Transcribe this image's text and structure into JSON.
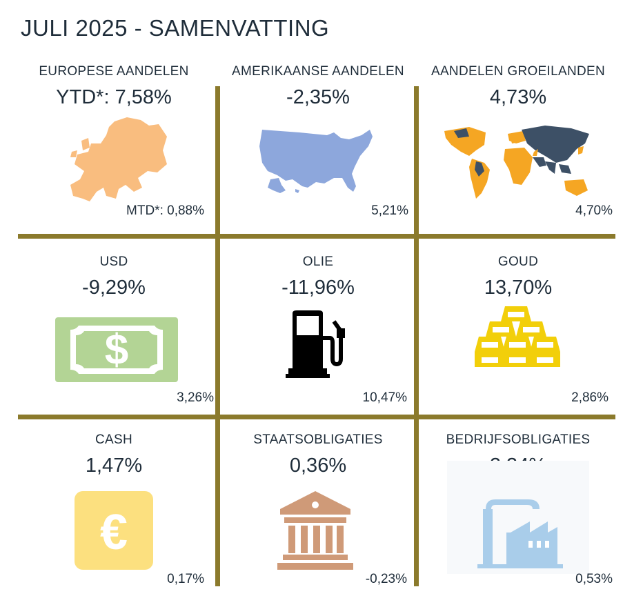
{
  "title": "JULI 2025 - SAMENVATTING",
  "cells": [
    {
      "label": "EUROPESE AANDELEN",
      "ytd": "YTD*: 7,58%",
      "mtd": "MTD*: 0,88%",
      "icon": "europe-map-icon",
      "color": "#f9bd7f"
    },
    {
      "label": "AMERIKAANSE AANDELEN",
      "ytd": "-2,35%",
      "mtd": "5,21%",
      "icon": "usa-map-icon",
      "color": "#8da7dc"
    },
    {
      "label": "AANDELEN GROEILANDEN",
      "ytd": "4,73%",
      "mtd": "4,70%",
      "icon": "world-map-icon",
      "color": "#f5a623"
    },
    {
      "label": "USD",
      "ytd": "-9,29%",
      "mtd": "3,26%",
      "icon": "dollar-bill-icon",
      "color": "#b3d495"
    },
    {
      "label": "OLIE",
      "ytd": "-11,96%",
      "mtd": "10,47%",
      "icon": "fuel-pump-icon",
      "color": "#000000"
    },
    {
      "label": "GOUD",
      "ytd": "13,70%",
      "mtd": "2,86%",
      "icon": "gold-bars-icon",
      "color": "#f2cf0a"
    },
    {
      "label": "CASH",
      "ytd": "1,47%",
      "mtd": "0,17%",
      "icon": "euro-icon",
      "color": "#fce07f"
    },
    {
      "label": "STAATSOBLIGATIES",
      "ytd": "0,36%",
      "mtd": "-0,23%",
      "icon": "government-building-icon",
      "color": "#cf9a78"
    },
    {
      "label": "BEDRIJFSOBLIGATIES",
      "ytd": "2,34%",
      "mtd": "0,53%",
      "icon": "factory-icon",
      "color": "#a9cdea"
    }
  ]
}
